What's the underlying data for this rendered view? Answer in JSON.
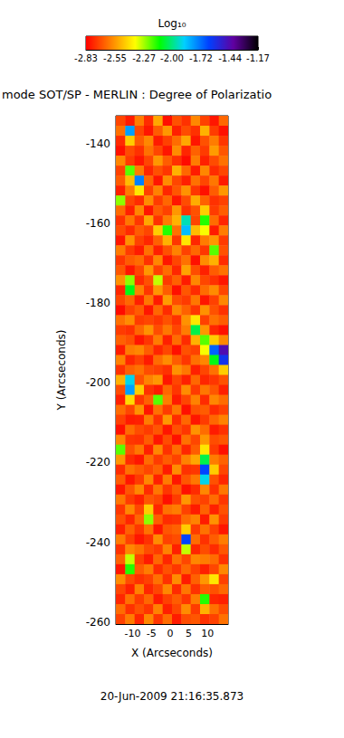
{
  "chart_data": {
    "type": "heatmap",
    "title": "mode SOT/SP - MERLIN : Degree of Polarizatio",
    "x_label": "X (Arcseconds)",
    "y_label": "Y (Arcseconds)",
    "annotation": "20-Jun-2009 21:16:35.873",
    "grid": false,
    "xlim": [
      -14.5,
      15.5
    ],
    "xticks": [
      -10,
      -5,
      0,
      5,
      10
    ],
    "ylim": [
      -260.5,
      -133
    ],
    "yticks": [
      -260,
      -240,
      -220,
      -200,
      -180,
      -160,
      -140
    ],
    "colorbar": {
      "title": "Log₁₀",
      "range": [
        -2.83,
        -1.17
      ],
      "ticks": [
        -2.83,
        -2.55,
        -2.27,
        {
          "value": -2.0,
          "label": "-2.00"
        },
        -1.72,
        -1.44,
        -1.17
      ]
    },
    "x": [
      -13.25,
      -10.75,
      -8.25,
      -5.75,
      -3.25,
      -0.75,
      1.75,
      4.25,
      6.75,
      9.25,
      11.75,
      14.25
    ],
    "y": [
      -134.25,
      -136.75,
      -139.25,
      -141.75,
      -144.25,
      -146.75,
      -149.25,
      -151.75,
      -154.25,
      -156.75,
      -159.25,
      -161.75,
      -164.25,
      -166.75,
      -169.25,
      -171.75,
      -174.25,
      -176.75,
      -179.25,
      -181.75,
      -184.25,
      -186.75,
      -189.25,
      -191.75,
      -194.25,
      -196.75,
      -199.25,
      -201.75,
      -204.25,
      -206.75,
      -209.25,
      -211.75,
      -214.25,
      -216.75,
      -219.25,
      -221.75,
      -224.25,
      -226.75,
      -229.25,
      -231.75,
      -234.25,
      -236.75,
      -239.25,
      -241.75,
      -244.25,
      -246.75,
      -249.25,
      -251.75,
      -254.25,
      -256.75,
      -259.25
    ],
    "z": [
      [
        -2.7,
        -2.78,
        -2.6,
        -2.75,
        -2.52,
        -2.8,
        -2.68,
        -2.74,
        -2.58,
        -2.71,
        -2.79,
        -2.64
      ],
      [
        -2.62,
        -1.8,
        -2.7,
        -2.79,
        -2.66,
        -2.55,
        -2.77,
        -2.69,
        -2.74,
        -2.5,
        -2.72,
        -2.8
      ],
      [
        -2.75,
        -2.45,
        -2.66,
        -2.58,
        -2.78,
        -2.71,
        -2.63,
        -2.52,
        -2.79,
        -2.68,
        -2.6,
        -2.73
      ],
      [
        -2.8,
        -2.69,
        -2.74,
        -2.62,
        -2.7,
        -2.79,
        -2.57,
        -2.76,
        -2.65,
        -2.72,
        -2.54,
        -2.67
      ],
      [
        -2.58,
        -2.72,
        -2.79,
        -2.7,
        -2.55,
        -2.66,
        -2.74,
        -2.81,
        -2.6,
        -2.77,
        -2.69,
        -2.62
      ],
      [
        -2.71,
        -2.2,
        -2.6,
        -2.76,
        -2.68,
        -2.73,
        -2.5,
        -2.64,
        -2.78,
        -2.58,
        -2.75,
        -2.7
      ],
      [
        -2.66,
        -2.48,
        -1.75,
        -2.64,
        -2.79,
        -2.57,
        -2.7,
        -2.77,
        -2.62,
        -2.7,
        -2.61,
        -2.78
      ],
      [
        -2.77,
        -2.6,
        -2.4,
        -2.71,
        -2.59,
        -2.76,
        -2.67,
        -2.56,
        -2.73,
        -2.8,
        -2.66,
        -2.55
      ],
      [
        -2.25,
        -2.7,
        -2.75,
        -2.57,
        -2.72,
        -2.64,
        -2.79,
        -2.69,
        -2.51,
        -2.65,
        -2.74,
        -2.71
      ],
      [
        -2.63,
        -2.77,
        -2.58,
        -2.79,
        -2.66,
        -2.71,
        -2.55,
        -2.74,
        -2.68,
        -2.45,
        -2.72,
        -2.66
      ],
      [
        -2.74,
        -2.61,
        -2.73,
        -2.52,
        -2.74,
        -2.6,
        -2.5,
        -1.95,
        -2.7,
        -2.15,
        -2.63,
        -2.76
      ],
      [
        -2.69,
        -2.75,
        -2.66,
        -2.7,
        -2.45,
        -2.15,
        -2.62,
        -1.85,
        -2.48,
        -2.35,
        -2.78,
        -2.6
      ],
      [
        -2.79,
        -2.56,
        -2.71,
        -2.76,
        -2.65,
        -2.5,
        -2.73,
        -2.4,
        -2.76,
        -2.6,
        -2.55,
        -2.72
      ],
      [
        -2.6,
        -2.72,
        -2.78,
        -2.62,
        -2.77,
        -2.68,
        -2.59,
        -2.71,
        -2.64,
        -2.73,
        -2.2,
        -2.68
      ],
      [
        -2.73,
        -2.66,
        -2.63,
        -2.74,
        -2.58,
        -2.79,
        -2.7,
        -2.62,
        -2.8,
        -2.57,
        -2.5,
        -2.75
      ],
      [
        -2.67,
        -2.79,
        -2.7,
        -2.55,
        -2.71,
        -2.63,
        -2.76,
        -2.53,
        -2.69,
        -2.77,
        -2.66,
        -2.62
      ],
      [
        -2.56,
        -2.25,
        -2.75,
        -2.68,
        -2.3,
        -2.72,
        -2.65,
        -2.78,
        -2.58,
        -2.7,
        -2.74,
        -2.79
      ],
      [
        -2.76,
        -2.1,
        -2.59,
        -2.73,
        -2.55,
        -2.66,
        -2.8,
        -2.67,
        -2.75,
        -2.63,
        -2.57,
        -2.7
      ],
      [
        -2.7,
        -2.64,
        -2.77,
        -2.61,
        -2.78,
        -2.54,
        -2.69,
        -2.72,
        -2.61,
        -2.79,
        -2.71,
        -2.58
      ],
      [
        -2.81,
        -2.71,
        -2.66,
        -2.79,
        -2.64,
        -2.75,
        -2.58,
        -2.65,
        -2.73,
        -2.56,
        -2.68,
        -2.74
      ],
      [
        -2.62,
        -2.57,
        -2.72,
        -2.7,
        -2.73,
        -2.68,
        -2.74,
        -2.56,
        -2.4,
        -2.71,
        -2.62,
        -2.66
      ],
      [
        -2.72,
        -2.74,
        -2.64,
        -2.56,
        -2.69,
        -2.61,
        -2.7,
        -2.6,
        -2.05,
        -2.55,
        -2.76,
        -2.8
      ],
      [
        -2.65,
        -2.68,
        -2.79,
        -2.73,
        -2.6,
        -2.77,
        -2.63,
        -2.75,
        -2.5,
        -2.2,
        -2.45,
        -2.58
      ],
      [
        -2.78,
        -2.6,
        -2.58,
        -2.66,
        -2.76,
        -2.7,
        -2.8,
        -2.68,
        -2.71,
        -2.35,
        -1.7,
        -1.45
      ],
      [
        -2.59,
        -2.76,
        -2.71,
        -2.78,
        -2.63,
        -2.57,
        -2.66,
        -2.73,
        -2.62,
        -2.58,
        -2.1,
        -1.6
      ],
      [
        -2.74,
        -2.65,
        -2.62,
        -2.69,
        -2.71,
        -2.74,
        -2.56,
        -2.61,
        -2.77,
        -2.7,
        -2.62,
        -2.45
      ],
      [
        -2.5,
        -1.9,
        -2.68,
        -2.59,
        -2.55,
        -2.79,
        -2.7,
        -2.77,
        -2.64,
        -2.76,
        -2.73,
        -2.68
      ],
      [
        -2.69,
        -1.8,
        -2.45,
        -2.74,
        -2.78,
        -2.64,
        -2.73,
        -2.57,
        -2.72,
        -2.61,
        -2.67,
        -2.77
      ],
      [
        -2.77,
        -2.42,
        -2.73,
        -2.65,
        -2.2,
        -2.6,
        -2.78,
        -2.7,
        -2.59,
        -2.75,
        -2.58,
        -2.63
      ],
      [
        -2.63,
        -2.7,
        -2.56,
        -2.79,
        -2.62,
        -2.72,
        -2.61,
        -2.8,
        -2.68,
        -2.66,
        -2.75,
        -2.71
      ],
      [
        -2.71,
        -2.78,
        -2.77,
        -2.6,
        -2.74,
        -2.55,
        -2.75,
        -2.64,
        -2.79,
        -2.72,
        -2.64,
        -2.59
      ],
      [
        -2.8,
        -2.63,
        -2.69,
        -2.72,
        -2.67,
        -2.79,
        -2.68,
        -2.73,
        -2.56,
        -2.63,
        -2.78,
        -2.74
      ],
      [
        -2.58,
        -2.73,
        -2.74,
        -2.66,
        -2.79,
        -2.69,
        -2.8,
        -2.62,
        -2.7,
        -2.55,
        -2.69,
        -2.67
      ],
      [
        -2.2,
        -2.68,
        -2.61,
        -2.77,
        -2.58,
        -2.74,
        -2.63,
        -2.76,
        -2.66,
        -2.4,
        -2.72,
        -2.8
      ],
      [
        -2.55,
        -2.75,
        -2.79,
        -2.63,
        -2.72,
        -2.66,
        -2.71,
        -2.59,
        -2.52,
        -2.05,
        -2.6,
        -2.65
      ],
      [
        -2.75,
        -2.62,
        -2.66,
        -2.7,
        -2.65,
        -2.78,
        -2.57,
        -2.74,
        -2.73,
        -1.65,
        -2.45,
        -2.7
      ],
      [
        -2.66,
        -2.79,
        -2.72,
        -2.58,
        -2.77,
        -2.6,
        -2.79,
        -2.67,
        -2.61,
        -1.9,
        -2.68,
        -2.76
      ],
      [
        -2.79,
        -2.67,
        -2.58,
        -2.75,
        -2.61,
        -2.73,
        -2.66,
        -2.8,
        -2.75,
        -2.58,
        -2.74,
        -2.61
      ],
      [
        -2.61,
        -2.72,
        -2.77,
        -2.67,
        -2.7,
        -2.8,
        -2.72,
        -2.55,
        -2.68,
        -2.71,
        -2.63,
        -2.73
      ],
      [
        -2.73,
        -2.58,
        -2.7,
        -2.45,
        -2.76,
        -2.62,
        -2.6,
        -2.71,
        -2.78,
        -2.65,
        -2.77,
        -2.68
      ],
      [
        -2.68,
        -2.76,
        -2.64,
        -2.25,
        -2.66,
        -2.75,
        -2.74,
        -2.63,
        -2.59,
        -2.78,
        -2.56,
        -2.72
      ],
      [
        -2.77,
        -2.65,
        -2.73,
        -2.62,
        -2.79,
        -2.67,
        -2.65,
        -2.45,
        -2.72,
        -2.62,
        -2.71,
        -2.79
      ],
      [
        -2.6,
        -2.71,
        -2.79,
        -2.74,
        -2.57,
        -2.71,
        -2.69,
        -1.65,
        -2.63,
        -2.74,
        -2.66,
        -2.6
      ],
      [
        -2.74,
        -2.58,
        -2.62,
        -2.69,
        -2.72,
        -2.59,
        -2.77,
        -2.3,
        -2.76,
        -2.69,
        -2.75,
        -2.67
      ],
      [
        -2.65,
        -2.3,
        -2.71,
        -2.78,
        -2.64,
        -2.76,
        -2.62,
        -2.7,
        -2.58,
        -2.6,
        -2.63,
        -2.74
      ],
      [
        -2.79,
        -2.15,
        -2.66,
        -2.6,
        -2.75,
        -2.68,
        -2.73,
        -2.64,
        -2.71,
        -2.77,
        -2.7,
        -2.58
      ],
      [
        -2.57,
        -2.69,
        -2.74,
        -2.71,
        -2.62,
        -2.74,
        -2.57,
        -2.78,
        -2.65,
        -2.55,
        -2.4,
        -2.71
      ],
      [
        -2.7,
        -2.77,
        -2.59,
        -2.76,
        -2.7,
        -2.58,
        -2.75,
        -2.61,
        -2.74,
        -2.66,
        -2.68,
        -2.64
      ],
      [
        -2.76,
        -2.62,
        -2.72,
        -2.64,
        -2.78,
        -2.71,
        -2.66,
        -2.73,
        -2.6,
        -2.15,
        -2.76,
        -2.77
      ],
      [
        -2.63,
        -2.74,
        -2.68,
        -2.73,
        -2.59,
        -2.77,
        -2.7,
        -2.57,
        -2.72,
        -2.5,
        -2.62,
        -2.69
      ],
      [
        -2.71,
        -2.6,
        -2.76,
        -2.58,
        -2.73,
        -2.63,
        -2.78,
        -2.69,
        -2.67,
        -2.74,
        -2.71,
        -2.62
      ]
    ]
  }
}
